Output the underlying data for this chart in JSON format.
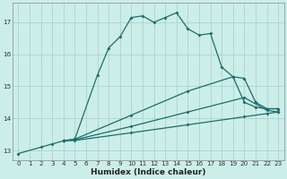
{
  "xlabel": "Humidex (Indice chaleur)",
  "background_color": "#cceee8",
  "grid_color": "#aacccc",
  "line_color": "#1a6e6a",
  "xlim": [
    -0.5,
    23.5
  ],
  "ylim": [
    12.7,
    17.6
  ],
  "yticks": [
    13,
    14,
    15,
    16,
    17
  ],
  "xticks": [
    0,
    1,
    2,
    3,
    4,
    5,
    6,
    7,
    8,
    9,
    10,
    11,
    12,
    13,
    14,
    15,
    16,
    17,
    18,
    19,
    20,
    21,
    22,
    23
  ],
  "curve1": {
    "x": [
      0,
      2,
      3,
      4,
      5,
      7,
      8,
      9,
      10,
      11,
      12,
      13,
      14,
      15,
      16,
      17,
      18,
      19,
      20,
      21,
      22,
      23
    ],
    "y": [
      12.9,
      13.1,
      13.2,
      13.3,
      13.35,
      15.35,
      16.2,
      16.55,
      17.15,
      17.2,
      17.0,
      17.15,
      17.3,
      16.8,
      16.6,
      16.65,
      15.6,
      15.3,
      14.5,
      14.35,
      14.3,
      14.3
    ]
  },
  "curve2": {
    "x": [
      4,
      5,
      10,
      15,
      19,
      20,
      21,
      22,
      23
    ],
    "y": [
      13.3,
      13.35,
      14.1,
      14.85,
      15.3,
      15.25,
      14.5,
      14.3,
      14.3
    ]
  },
  "curve3": {
    "x": [
      4,
      5,
      10,
      15,
      20,
      22,
      23
    ],
    "y": [
      13.3,
      13.33,
      13.75,
      14.2,
      14.65,
      14.25,
      14.2
    ]
  },
  "curve4": {
    "x": [
      4,
      5,
      10,
      15,
      20,
      22,
      23
    ],
    "y": [
      13.3,
      13.31,
      13.55,
      13.8,
      14.05,
      14.15,
      14.2
    ]
  }
}
